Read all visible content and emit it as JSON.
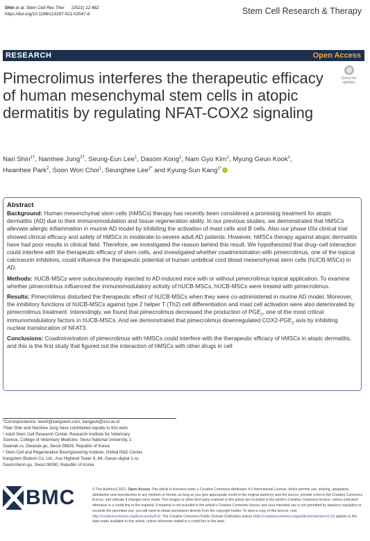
{
  "header": {
    "authors_short": "Shin",
    "etal": "et al.",
    "journal_abbr": "Stem Cell Res Ther",
    "year_volume": "(2021) 12:482",
    "doi": "https://doi.org/10.1186/s13287-021-02547-8",
    "journal_name": "Stem Cell Research & Therapy"
  },
  "bar": {
    "section": "RESEARCH",
    "access": "Open Access"
  },
  "title": "Pimecrolimus interferes the therapeutic efficacy of human mesenchymal stem cells in atopic dermatitis by regulating NFAT-COX2 signaling",
  "badge": {
    "line1": "Check for",
    "line2": "updates"
  },
  "authors": [
    {
      "name": "Nari Shin",
      "sup": "1†"
    },
    {
      "name": "Namhee Jung",
      "sup": "2†"
    },
    {
      "name": "Seung-Eun Lee",
      "sup": "1"
    },
    {
      "name": "Dasom Kong",
      "sup": "1"
    },
    {
      "name": "Nam Gyo Kim",
      "sup": "1"
    },
    {
      "name": "Myung Geun Kook",
      "sup": "1"
    },
    {
      "name": "Hwanhee Park",
      "sup": "2"
    },
    {
      "name": "Soon Won Choi",
      "sup": "1"
    },
    {
      "name": "Seunghee Lee",
      "sup": "2*"
    },
    {
      "name": "Kyung-Sun Kang",
      "sup": "1*"
    }
  ],
  "authors_and": "and",
  "abstract": {
    "heading": "Abstract",
    "background_label": "Background:",
    "background": "Human mesenchymal stem cells (hMSCs) therapy has recently been considered a promising treatment for atopic dermatitis (AD) due to their immunomodulation and tissue regeneration ability. In our previous studies, we demonstrated that hMSCs alleviate allergic inflammation in murine AD model by inhibiting the activation of mast cells and B cells. Also our phase I/IIa clinical trial showed clinical efficacy and safety of hMSCs in moderate-to-severe adult AD patients. However, hMSCs therapy against atopic dermatitis have had poor results in clinical field. Therefore, we investigated the reason behind this result. We hypothesized that drug–cell interaction could interfere with the therapeutic efficacy of stem cells, and investigated whether coadministration with pimecrolimus, one of the topical calcineurin inhibitors, could influence the therapeutic potential of human umbilical cord blood mesenchymal stem cells (hUCB-MSCs) in AD.",
    "methods_label": "Methods:",
    "methods": "hUCB-MSCs were subcutaneously injected to AD-induced mice with or without pimecrolimus topical application. To examine whether pimecrolimus influenced the immunomodulatory activity of hUCB-MSCs, hUCB-MSCs were treated with pimecrolimus.",
    "results_label": "Results:",
    "results_1": "Pimecrolimus disturbed the therapeutic effect of hUCB-MSCs when they were co-administered in murine AD model. Moreover, the inhibitory functions of hUCB-MSCs against type 2 helper T (Th2) cell differentiation and mast cell activation were also deteriorated by pimecrolimus treatment. Interestingly, we found that pimecrolimus decreased the production of PGE",
    "results_sub": "2",
    "results_2": ", one of the most critical immunomodulatory factors in hUCB-MSCs. And we demonstrated that pimecrolimus downregulated COX2-PGE",
    "results_sub2": "2",
    "results_3": " axis by inhibiting nuclear translocation of NFAT3.",
    "conclusions_label": "Conclusions:",
    "conclusions": "Coadministration of pimecrolimus with hMSCs could interfere with the therapeutic efficacy of hMSCs in atopic dermatitis, and this is the first study that figured out the interaction of hMSCs with other drugs in cell"
  },
  "footnotes": [
    "*Correspondence:  leesh@kangstem.com; kangpub@snu.ac.kr",
    "†Nari Shin and Namhee Jung have contributed equally to this work",
    "¹ Adult Stem Cell Research Center, Research Institute for Veterinary",
    "Science, College of Veterinary Medicine, Seoul National University, 1",
    "Gwanak-ro, Gwanak-gu, Seoul 08826, Republic of Korea",
    "² Stem Cell and Regenerative Bioengineering Institute, Global R&D Center,",
    "Kangstem Biotech Co. Ltd., Ace Highend Tower 8, 84, Gasan digital 1-ro,",
    "Geumcheon-gu, Seoul 08590, Republic of Korea"
  ],
  "publisher_logo_text": "BMC",
  "license": {
    "copyright": "© The Author(s) 2021.",
    "oa_label": "Open Access",
    "text_1": "This article is licensed under a Creative Commons Attribution 4.0 International License, which permits use, sharing, adaptation, distribution and reproduction in any medium or format, as long as you give appropriate credit to the original author(s) and the source, provide a link to the Creative Commons licence, and indicate if changes were made. The images or other third party material in this article are included in the article's Creative Commons licence, unless indicated otherwise in a credit line to the material. If material is not included in the article's Creative Commons licence and your intended use is not permitted by statutory regulation or exceeds the permitted use, you will need to obtain permission directly from the copyright holder. To view a copy of this licence, visit",
    "link_1": "http://creativecommons.org/licenses/by/4.0/",
    "text_2": ". The Creative Commons Public Domain Dedication waiver (",
    "link_2": "http://creativecommons.org/publicdomain/zero/1.0/",
    "text_3": ") applies to the data made available in this article, unless otherwise stated in a credit line to the data."
  },
  "colors": {
    "bar": "#1c2f4e",
    "open_access": "#f2a93b",
    "abstract_border": "#5e6fa3",
    "orcid": "#a6ce39",
    "bmc_blue": "#1c2f4e"
  }
}
